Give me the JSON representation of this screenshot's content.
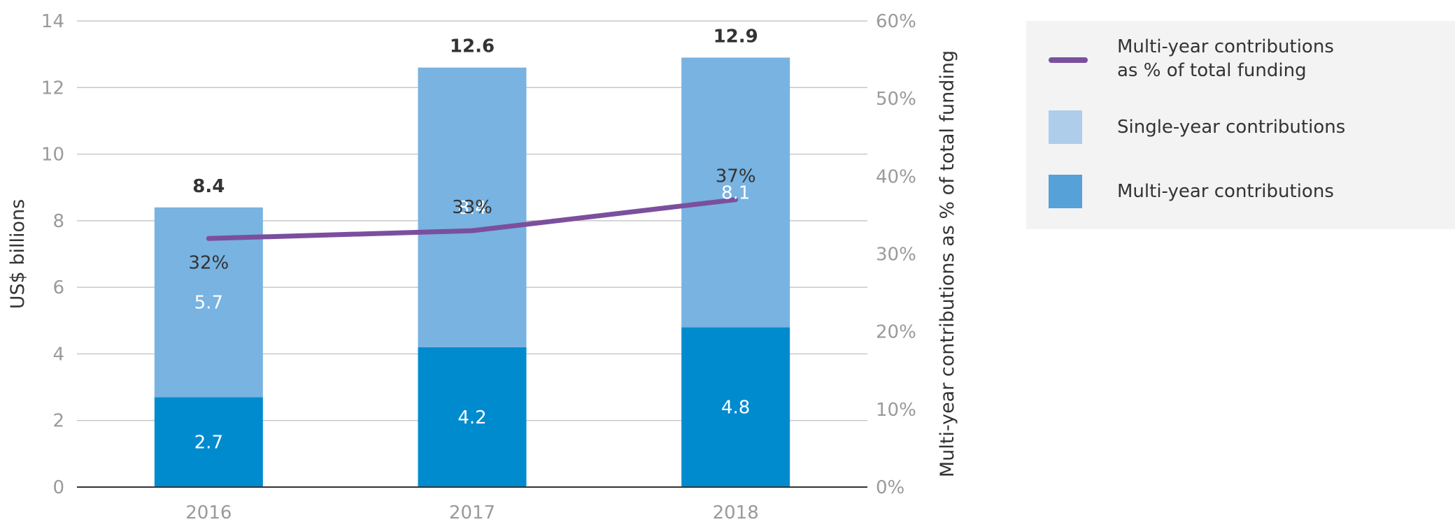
{
  "chart_data": {
    "type": "bar",
    "stacked": true,
    "categories": [
      "2016",
      "2017",
      "2018"
    ],
    "series": [
      {
        "name": "Multi-year contributions",
        "values": [
          2.7,
          4.2,
          4.8
        ],
        "color": "#008bcf",
        "value_labels": [
          "2.7",
          "4.2",
          "4.8"
        ]
      },
      {
        "name": "Single-year contributions",
        "values": [
          5.7,
          8.4,
          8.1
        ],
        "color": "#78b3e1",
        "value_labels": [
          "5.7",
          "8.4",
          "8.1"
        ]
      }
    ],
    "totals": [
      "8.4",
      "12.6",
      "12.9"
    ],
    "line_series": {
      "name": "Multi-year contributions as % of total funding",
      "axis": "right",
      "values": [
        32,
        33,
        37
      ],
      "labels": [
        "32%",
        "33%",
        "37%"
      ],
      "color": "#7b4f9e"
    },
    "ylabel": "US$ billions",
    "y2label": "Multi-year contributions as % of total funding",
    "ylim": [
      0,
      14
    ],
    "y2lim": [
      0,
      60
    ],
    "yticks": [
      "0",
      "2",
      "4",
      "6",
      "8",
      "10",
      "12",
      "14"
    ],
    "y2ticks": [
      "0%",
      "10%",
      "20%",
      "30%",
      "40%",
      "50%",
      "60%"
    ],
    "grid": true,
    "legend_position": "right"
  },
  "legend": {
    "items": [
      {
        "label": "Multi-year contributions\nas % of total funding",
        "type": "line",
        "color": "#7b4f9e"
      },
      {
        "label": "Single-year contributions",
        "type": "box",
        "color": "#aecdeb"
      },
      {
        "label": "Multi-year contributions",
        "type": "box",
        "color": "#55a1d8"
      }
    ]
  }
}
